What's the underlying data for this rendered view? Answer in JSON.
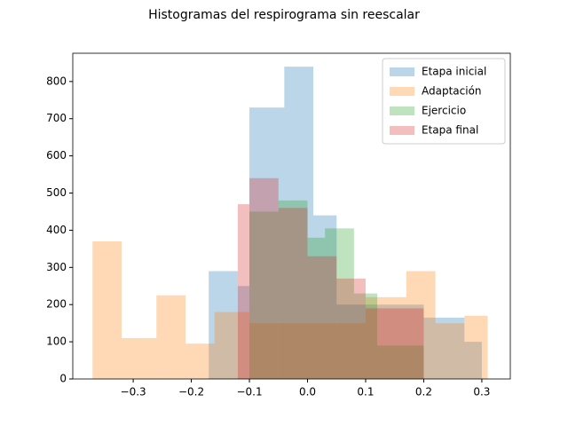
{
  "chart_data": {
    "type": "histogram",
    "title": "Histogramas del respirograma sin reescalar",
    "series": [
      {
        "name": "Etapa inicial",
        "color": "#1f77b4",
        "bins": [
          -0.17,
          -0.12,
          -0.1,
          -0.04,
          0.01,
          0.05,
          0.2,
          0.27,
          0.3
        ],
        "values": [
          290,
          250,
          730,
          840,
          440,
          200,
          165,
          100
        ]
      },
      {
        "name": "Adaptación",
        "color": "#ff7f0e",
        "bins": [
          -0.37,
          -0.32,
          -0.26,
          -0.21,
          -0.16,
          -0.1,
          0.1,
          0.17,
          0.22,
          0.27,
          0.31
        ],
        "values": [
          370,
          110,
          225,
          95,
          180,
          150,
          220,
          290,
          150,
          170
        ]
      },
      {
        "name": "Ejercicio",
        "color": "#2ca02c",
        "bins": [
          -0.1,
          -0.05,
          0.0,
          0.03,
          0.08,
          0.12,
          0.2
        ],
        "values": [
          450,
          480,
          380,
          405,
          230,
          90
        ]
      },
      {
        "name": "Etapa final",
        "color": "#d62728",
        "bins": [
          -0.12,
          -0.1,
          -0.05,
          0.0,
          0.05,
          0.1,
          0.2
        ],
        "values": [
          470,
          540,
          460,
          330,
          270,
          190
        ]
      }
    ],
    "xlim": [
      -0.404,
      0.349
    ],
    "ylim": [
      0,
      876
    ],
    "xticks": [
      {
        "value": -0.3,
        "label": "−0.3"
      },
      {
        "value": -0.2,
        "label": "−0.2"
      },
      {
        "value": -0.1,
        "label": "−0.1"
      },
      {
        "value": 0,
        "label": "0.0"
      },
      0.1,
      0.2,
      0.3
    ],
    "yticks": [
      0,
      100,
      200,
      300,
      400,
      500,
      600,
      700,
      800
    ],
    "legend": "upper right",
    "opacity": 0.3
  }
}
